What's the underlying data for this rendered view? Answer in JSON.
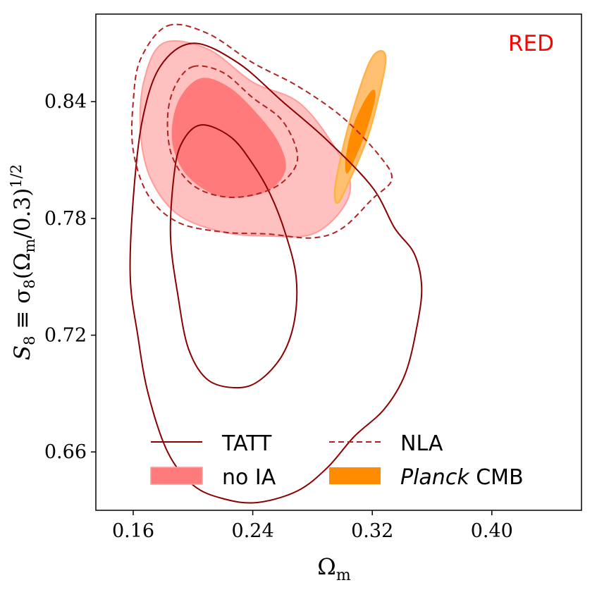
{
  "chart_data": {
    "type": "contour",
    "tag": "RED",
    "xlabel_main": "Ω",
    "xlabel_sub": "m",
    "ylabel": {
      "s": "S",
      "s_sub": "8",
      "eq": " ≡ σ",
      "sigma_sub": "8",
      "paren_open": "(Ω",
      "omega_sub": "m",
      "paren_close": "/0.3)",
      "power": "1/2"
    },
    "xlim": [
      0.135,
      0.46
    ],
    "ylim": [
      0.63,
      0.885
    ],
    "xticks": [
      0.16,
      0.24,
      0.32,
      0.4
    ],
    "xtick_labels": [
      "0.16",
      "0.24",
      "0.32",
      "0.40"
    ],
    "yticks": [
      0.66,
      0.72,
      0.78,
      0.84
    ],
    "ytick_labels": [
      "0.66",
      "0.72",
      "0.78",
      "0.84"
    ],
    "colors": {
      "tatt": "#8b0000",
      "nla": "#b22222",
      "noia_outer": "#ffc0c0",
      "noia_inner": "#ff7b7b",
      "noia_edge": "#ff9c9c",
      "planck_outer": "#ffc171",
      "planck_inner": "#ff8c00",
      "planck_edge": "#ffb347",
      "tag": "#ff0000"
    },
    "series": [
      {
        "name": "TATT",
        "style": "solid-line",
        "contours": [
          [
            [
              0.2,
              0.87
            ],
            [
              0.23,
              0.86
            ],
            [
              0.26,
              0.84
            ],
            [
              0.29,
              0.82
            ],
            [
              0.32,
              0.796
            ],
            [
              0.335,
              0.775
            ],
            [
              0.348,
              0.762
            ],
            [
              0.353,
              0.745
            ],
            [
              0.35,
              0.725
            ],
            [
              0.342,
              0.7
            ],
            [
              0.328,
              0.682
            ],
            [
              0.308,
              0.668
            ],
            [
              0.29,
              0.652
            ],
            [
              0.27,
              0.64
            ],
            [
              0.243,
              0.634
            ],
            [
              0.22,
              0.636
            ],
            [
              0.2,
              0.643
            ],
            [
              0.183,
              0.66
            ],
            [
              0.17,
              0.69
            ],
            [
              0.163,
              0.72
            ],
            [
              0.158,
              0.75
            ],
            [
              0.16,
              0.79
            ],
            [
              0.166,
              0.83
            ],
            [
              0.178,
              0.858
            ],
            [
              0.2,
              0.87
            ]
          ],
          [
            [
              0.205,
              0.828
            ],
            [
              0.225,
              0.822
            ],
            [
              0.24,
              0.808
            ],
            [
              0.252,
              0.792
            ],
            [
              0.262,
              0.772
            ],
            [
              0.269,
              0.75
            ],
            [
              0.268,
              0.728
            ],
            [
              0.26,
              0.71
            ],
            [
              0.245,
              0.697
            ],
            [
              0.23,
              0.693
            ],
            [
              0.21,
              0.697
            ],
            [
              0.197,
              0.713
            ],
            [
              0.19,
              0.74
            ],
            [
              0.185,
              0.77
            ],
            [
              0.187,
              0.8
            ],
            [
              0.192,
              0.818
            ],
            [
              0.205,
              0.828
            ]
          ]
        ]
      },
      {
        "name": "NLA",
        "style": "dashed-line",
        "contours": [
          [
            [
              0.183,
              0.879
            ],
            [
              0.21,
              0.875
            ],
            [
              0.24,
              0.86
            ],
            [
              0.27,
              0.848
            ],
            [
              0.3,
              0.832
            ],
            [
              0.325,
              0.812
            ],
            [
              0.333,
              0.8
            ],
            [
              0.32,
              0.79
            ],
            [
              0.3,
              0.775
            ],
            [
              0.28,
              0.77
            ],
            [
              0.25,
              0.772
            ],
            [
              0.22,
              0.773
            ],
            [
              0.19,
              0.778
            ],
            [
              0.17,
              0.792
            ],
            [
              0.16,
              0.815
            ],
            [
              0.16,
              0.84
            ],
            [
              0.165,
              0.862
            ],
            [
              0.183,
              0.879
            ]
          ],
          [
            [
              0.2,
              0.858
            ],
            [
              0.22,
              0.855
            ],
            [
              0.24,
              0.842
            ],
            [
              0.26,
              0.83
            ],
            [
              0.27,
              0.812
            ],
            [
              0.262,
              0.8
            ],
            [
              0.245,
              0.793
            ],
            [
              0.222,
              0.791
            ],
            [
              0.2,
              0.797
            ],
            [
              0.186,
              0.812
            ],
            [
              0.183,
              0.832
            ],
            [
              0.188,
              0.848
            ],
            [
              0.2,
              0.858
            ]
          ]
        ]
      },
      {
        "name": "no IA",
        "style": "filled",
        "contours": [
          [
            [
              0.18,
              0.87
            ],
            [
              0.21,
              0.867
            ],
            [
              0.24,
              0.85
            ],
            [
              0.27,
              0.84
            ],
            [
              0.292,
              0.82
            ],
            [
              0.305,
              0.8
            ],
            [
              0.3,
              0.785
            ],
            [
              0.28,
              0.772
            ],
            [
              0.25,
              0.771
            ],
            [
              0.22,
              0.773
            ],
            [
              0.19,
              0.782
            ],
            [
              0.172,
              0.8
            ],
            [
              0.165,
              0.823
            ],
            [
              0.167,
              0.85
            ],
            [
              0.18,
              0.87
            ]
          ],
          [
            [
              0.205,
              0.852
            ],
            [
              0.225,
              0.847
            ],
            [
              0.245,
              0.832
            ],
            [
              0.258,
              0.818
            ],
            [
              0.262,
              0.805
            ],
            [
              0.252,
              0.795
            ],
            [
              0.235,
              0.791
            ],
            [
              0.215,
              0.792
            ],
            [
              0.195,
              0.803
            ],
            [
              0.186,
              0.82
            ],
            [
              0.19,
              0.84
            ],
            [
              0.205,
              0.852
            ]
          ]
        ]
      },
      {
        "name": "Planck CMB",
        "style": "filled",
        "contours": [
          [
            [
              0.325,
              0.866
            ],
            [
              0.329,
              0.862
            ],
            [
              0.325,
              0.845
            ],
            [
              0.317,
              0.822
            ],
            [
              0.305,
              0.8
            ],
            [
              0.297,
              0.788
            ],
            [
              0.295,
              0.795
            ],
            [
              0.3,
              0.815
            ],
            [
              0.308,
              0.838
            ],
            [
              0.318,
              0.86
            ],
            [
              0.325,
              0.866
            ]
          ],
          [
            [
              0.32,
              0.846
            ],
            [
              0.322,
              0.842
            ],
            [
              0.316,
              0.825
            ],
            [
              0.308,
              0.81
            ],
            [
              0.303,
              0.803
            ],
            [
              0.302,
              0.81
            ],
            [
              0.306,
              0.825
            ],
            [
              0.313,
              0.838
            ],
            [
              0.32,
              0.846
            ]
          ]
        ]
      }
    ],
    "legend": {
      "placement": "lower-center",
      "entries": [
        {
          "label": "TATT",
          "style": "solid-line"
        },
        {
          "label": "NLA",
          "style": "dashed-line"
        },
        {
          "label": "no IA",
          "style": "filled"
        },
        {
          "label_italic": "Planck",
          "label_rest": " CMB",
          "style": "filled"
        }
      ]
    }
  }
}
